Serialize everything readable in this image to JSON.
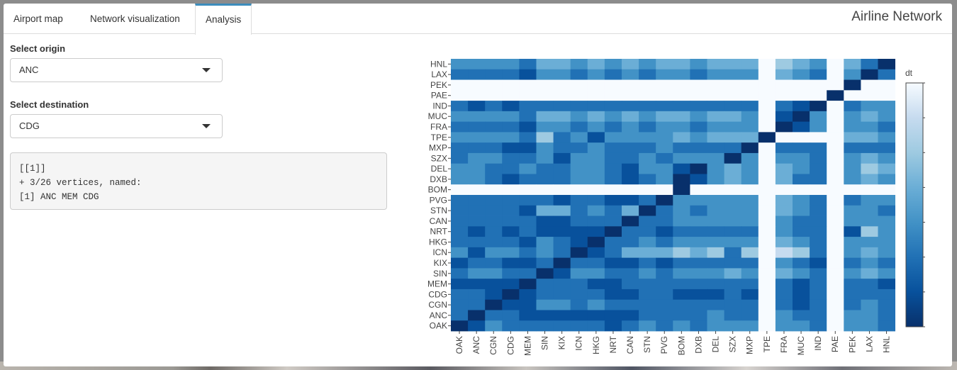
{
  "tabs": [
    {
      "label": "Airport map",
      "active": false
    },
    {
      "label": "Network visualization",
      "active": false
    },
    {
      "label": "Analysis",
      "active": true
    }
  ],
  "app_title": "Airline Network",
  "origin": {
    "label": "Select origin",
    "value": "ANC"
  },
  "destination": {
    "label": "Select destination",
    "value": "CDG"
  },
  "output_lines": [
    "[[1]]",
    "+ 3/26 vertices, named:",
    "[1] ANC MEM CDG"
  ],
  "chart_data": {
    "type": "heatmap",
    "x_labels": [
      "OAK",
      "ANC",
      "CGN",
      "CDG",
      "MEM",
      "SIN",
      "KIX",
      "ICN",
      "HKG",
      "NRT",
      "CAN",
      "STN",
      "PVG",
      "BOM",
      "DXB",
      "DEL",
      "SZX",
      "MXP",
      "TPE",
      "FRA",
      "MUC",
      "IND",
      "PAE",
      "PEK",
      "LAX",
      "HNL"
    ],
    "y_labels_top_to_bottom": [
      "HNL",
      "LAX",
      "PEK",
      "PAE",
      "IND",
      "MUC",
      "FRA",
      "TPE",
      "MXP",
      "SZX",
      "DEL",
      "DXB",
      "BOM",
      "PVG",
      "STN",
      "CAN",
      "NRT",
      "HKG",
      "ICN",
      "KIX",
      "SIN",
      "MEM",
      "CDG",
      "CGN",
      "ANC",
      "OAK"
    ],
    "colorbar": {
      "title": "dt",
      "min": 0,
      "max": 7,
      "ticks": [
        0,
        1,
        2,
        3,
        4,
        5,
        6,
        7
      ]
    },
    "colors": {
      "low": "#08306b",
      "high": "#f7fbff"
    },
    "values_rows_top_to_bottom": [
      [
        3,
        3,
        3,
        3,
        2,
        4,
        4,
        3,
        4,
        3,
        4,
        3,
        4,
        4,
        3,
        4,
        4,
        4,
        7,
        5,
        4,
        3,
        7,
        4,
        2,
        0
      ],
      [
        2,
        2,
        2,
        2,
        1,
        3,
        3,
        2,
        3,
        2,
        3,
        2,
        3,
        3,
        2,
        3,
        3,
        3,
        7,
        4,
        3,
        2,
        7,
        3,
        0,
        2
      ],
      [
        7,
        7,
        7,
        7,
        7,
        7,
        7,
        7,
        7,
        7,
        7,
        7,
        7,
        7,
        7,
        7,
        7,
        7,
        7,
        7,
        7,
        7,
        7,
        0,
        7,
        7
      ],
      [
        7,
        7,
        7,
        7,
        7,
        7,
        7,
        7,
        7,
        7,
        7,
        7,
        7,
        7,
        7,
        7,
        7,
        7,
        7,
        7,
        7,
        7,
        0,
        7,
        7,
        7
      ],
      [
        2,
        1,
        2,
        1,
        2,
        2,
        2,
        2,
        2,
        2,
        2,
        2,
        2,
        2,
        2,
        2,
        2,
        2,
        7,
        2,
        1,
        0,
        7,
        2,
        3,
        3
      ],
      [
        3,
        3,
        3,
        3,
        2,
        4,
        4,
        3,
        4,
        3,
        4,
        3,
        4,
        4,
        3,
        4,
        4,
        3,
        7,
        1,
        0,
        3,
        7,
        3,
        4,
        3
      ],
      [
        2,
        2,
        2,
        2,
        1,
        3,
        3,
        2,
        3,
        2,
        3,
        2,
        3,
        3,
        2,
        3,
        3,
        3,
        7,
        0,
        1,
        3,
        7,
        3,
        3,
        2
      ],
      [
        3,
        3,
        3,
        3,
        2,
        5,
        2,
        3,
        1,
        3,
        3,
        3,
        3,
        4,
        3,
        4,
        4,
        4,
        0,
        7,
        7,
        7,
        7,
        4,
        4,
        3
      ],
      [
        2,
        2,
        2,
        1,
        1,
        3,
        2,
        2,
        3,
        2,
        2,
        2,
        3,
        2,
        2,
        2,
        2,
        0,
        7,
        2,
        2,
        2,
        7,
        2,
        2,
        2
      ],
      [
        2,
        3,
        3,
        2,
        2,
        3,
        1,
        3,
        3,
        2,
        2,
        3,
        2,
        3,
        3,
        3,
        0,
        3,
        7,
        3,
        3,
        2,
        7,
        3,
        4,
        3
      ],
      [
        3,
        3,
        2,
        2,
        3,
        2,
        2,
        3,
        3,
        2,
        1,
        3,
        3,
        1,
        0,
        3,
        4,
        3,
        7,
        4,
        3,
        2,
        7,
        3,
        5,
        4
      ],
      [
        3,
        3,
        2,
        1,
        2,
        2,
        2,
        3,
        3,
        2,
        1,
        2,
        3,
        0,
        1,
        3,
        4,
        3,
        7,
        4,
        2,
        2,
        7,
        3,
        4,
        3
      ],
      [
        7,
        7,
        7,
        7,
        7,
        7,
        7,
        7,
        7,
        7,
        7,
        7,
        7,
        0,
        7,
        7,
        7,
        7,
        7,
        7,
        7,
        7,
        7,
        7,
        7,
        7
      ],
      [
        2,
        2,
        2,
        2,
        2,
        2,
        1,
        2,
        2,
        1,
        1,
        2,
        0,
        3,
        3,
        3,
        3,
        3,
        7,
        4,
        3,
        2,
        7,
        2,
        3,
        3
      ],
      [
        2,
        2,
        2,
        2,
        1,
        4,
        4,
        2,
        3,
        2,
        4,
        0,
        2,
        3,
        2,
        3,
        3,
        3,
        7,
        4,
        3,
        2,
        7,
        3,
        3,
        2
      ],
      [
        2,
        2,
        2,
        2,
        2,
        1,
        1,
        2,
        2,
        2,
        0,
        2,
        2,
        3,
        3,
        3,
        3,
        3,
        7,
        3,
        2,
        2,
        7,
        3,
        3,
        3
      ],
      [
        2,
        1,
        2,
        1,
        2,
        1,
        1,
        1,
        1,
        0,
        2,
        2,
        1,
        2,
        2,
        2,
        2,
        2,
        7,
        3,
        2,
        2,
        7,
        1,
        5,
        3
      ],
      [
        2,
        2,
        2,
        2,
        1,
        3,
        2,
        1,
        0,
        2,
        2,
        3,
        2,
        3,
        3,
        3,
        3,
        3,
        7,
        4,
        3,
        2,
        7,
        3,
        3,
        3
      ],
      [
        3,
        1,
        3,
        3,
        2,
        3,
        2,
        0,
        1,
        2,
        4,
        4,
        4,
        5,
        4,
        5,
        2,
        5,
        7,
        6,
        5,
        2,
        7,
        3,
        4,
        3
      ],
      [
        1,
        2,
        2,
        1,
        1,
        2,
        0,
        2,
        2,
        1,
        1,
        2,
        1,
        2,
        2,
        2,
        2,
        2,
        7,
        3,
        2,
        1,
        7,
        2,
        3,
        2
      ],
      [
        2,
        3,
        3,
        2,
        2,
        0,
        1,
        3,
        3,
        2,
        2,
        3,
        2,
        3,
        3,
        3,
        4,
        3,
        7,
        4,
        3,
        2,
        7,
        3,
        4,
        3
      ],
      [
        1,
        1,
        1,
        1,
        0,
        2,
        2,
        2,
        1,
        1,
        2,
        2,
        2,
        2,
        2,
        2,
        2,
        2,
        7,
        2,
        1,
        2,
        7,
        2,
        2,
        1
      ],
      [
        2,
        2,
        1,
        0,
        1,
        2,
        2,
        2,
        2,
        1,
        1,
        2,
        2,
        1,
        1,
        1,
        2,
        1,
        7,
        2,
        1,
        2,
        7,
        2,
        2,
        2
      ],
      [
        2,
        2,
        0,
        1,
        1,
        3,
        3,
        2,
        3,
        2,
        2,
        2,
        2,
        2,
        2,
        2,
        2,
        2,
        7,
        2,
        1,
        2,
        7,
        2,
        3,
        2
      ],
      [
        2,
        0,
        2,
        2,
        1,
        1,
        1,
        1,
        1,
        1,
        1,
        2,
        2,
        2,
        2,
        3,
        2,
        2,
        7,
        3,
        2,
        2,
        7,
        3,
        3,
        2
      ],
      [
        0,
        1,
        3,
        2,
        2,
        2,
        2,
        2,
        2,
        1,
        2,
        3,
        2,
        3,
        2,
        3,
        3,
        3,
        7,
        3,
        3,
        2,
        7,
        3,
        3,
        2
      ]
    ]
  }
}
